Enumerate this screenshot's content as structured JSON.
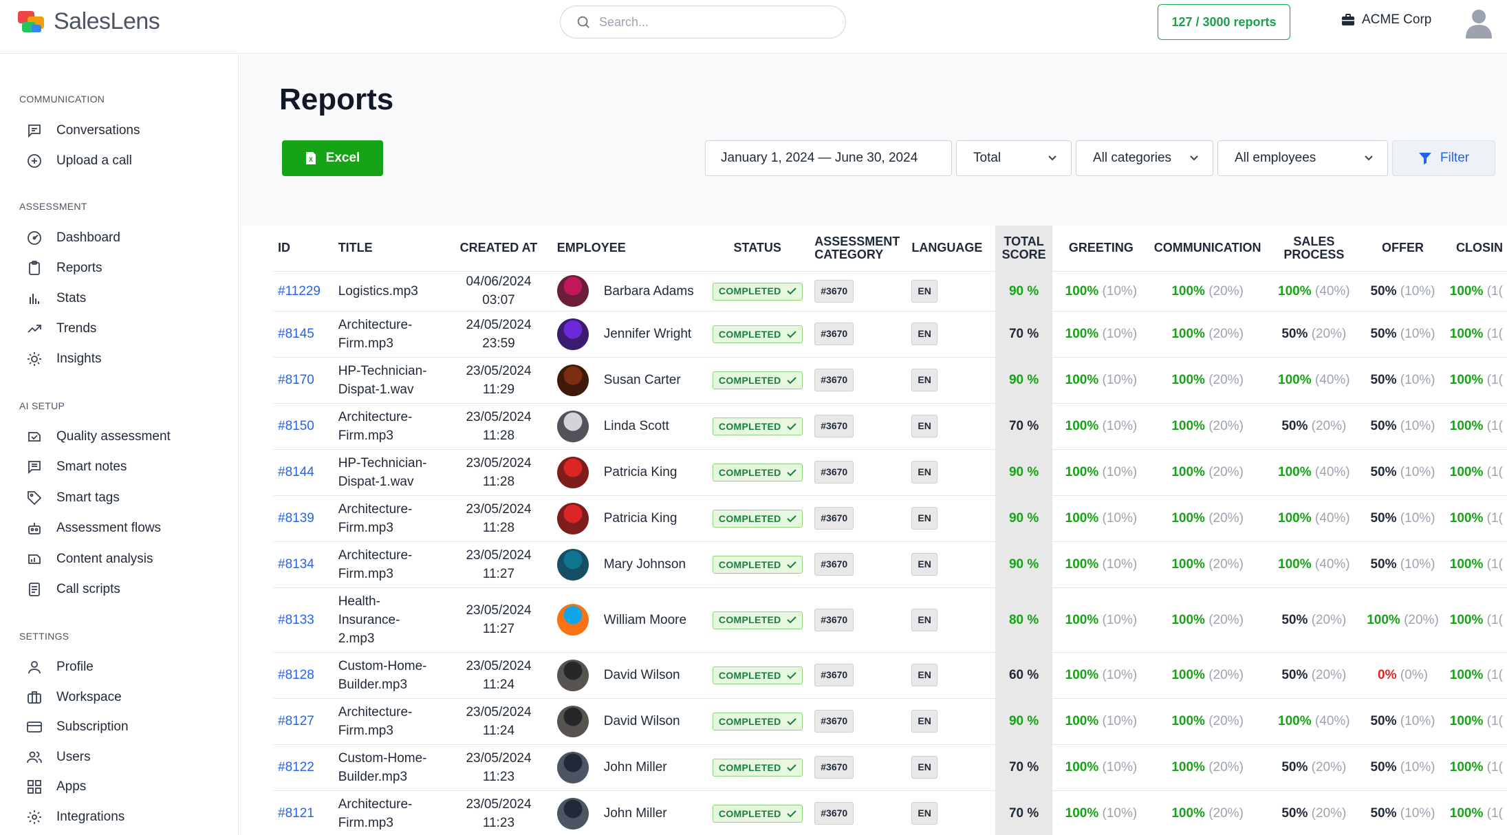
{
  "app": {
    "name": "SalesLens"
  },
  "header": {
    "search_placeholder": "Search...",
    "reports_count": "127 / 3000 reports",
    "workspace": "ACME Corp"
  },
  "sidebar": {
    "sections": [
      {
        "title": "COMMUNICATION",
        "items": [
          {
            "label": "Conversations",
            "icon": "chat-icon"
          },
          {
            "label": "Upload a call",
            "icon": "upload-icon"
          }
        ]
      },
      {
        "title": "ASSESSMENT",
        "items": [
          {
            "label": "Dashboard",
            "icon": "dashboard-icon"
          },
          {
            "label": "Reports",
            "icon": "clipboard-icon"
          },
          {
            "label": "Stats",
            "icon": "bar-chart-icon"
          },
          {
            "label": "Trends",
            "icon": "trend-icon"
          },
          {
            "label": "Insights",
            "icon": "sun-icon"
          }
        ]
      },
      {
        "title": "AI SETUP",
        "items": [
          {
            "label": "Quality assessment",
            "icon": "quality-icon"
          },
          {
            "label": "Smart notes",
            "icon": "notes-icon"
          },
          {
            "label": "Smart tags",
            "icon": "tag-icon"
          },
          {
            "label": "Assessment flows",
            "icon": "flow-icon"
          },
          {
            "label": "Content analysis",
            "icon": "analysis-icon"
          },
          {
            "label": "Call scripts",
            "icon": "script-icon"
          }
        ]
      },
      {
        "title": "SETTINGS",
        "items": [
          {
            "label": "Profile",
            "icon": "user-icon"
          },
          {
            "label": "Workspace",
            "icon": "briefcase-icon"
          },
          {
            "label": "Subscription",
            "icon": "card-icon"
          },
          {
            "label": "Users",
            "icon": "users-icon"
          },
          {
            "label": "Apps",
            "icon": "apps-icon"
          },
          {
            "label": "Integrations",
            "icon": "gear-icon"
          }
        ]
      }
    ]
  },
  "page": {
    "title": "Reports",
    "excel_label": "Excel",
    "date_range": "January 1, 2024 — June 30, 2024",
    "total_select": "Total",
    "categories_select": "All categories",
    "employees_select": "All employees",
    "filter_label": "Filter"
  },
  "table": {
    "columns": [
      "ID",
      "TITLE",
      "CREATED AT",
      "EMPLOYEE",
      "STATUS",
      "ASSESSMENT CATEGORY",
      "LANGUAGE",
      "TOTAL SCORE",
      "GREETING",
      "COMMUNICATION",
      "SALES PROCESS",
      "OFFER",
      "CLOSIN"
    ],
    "rows": [
      {
        "id": "#11229",
        "title": [
          "Logistics.mp3"
        ],
        "created": "04/06/2024 03:07",
        "employee": "Barbara Adams",
        "status": "COMPLETED",
        "category": "#3670",
        "lang": "EN",
        "total": "90 %",
        "greeting": [
          "100%",
          "(10%)"
        ],
        "communication": [
          "100%",
          "(20%)"
        ],
        "sales": [
          "100%",
          "(40%)"
        ],
        "offer": [
          "50%",
          "(10%)"
        ],
        "closing": [
          "100%",
          "(1("
        ]
      },
      {
        "id": "#8145",
        "title": [
          "Architecture-",
          "Firm.mp3"
        ],
        "created": "24/05/2024 23:59",
        "employee": "Jennifer Wright",
        "status": "COMPLETED",
        "category": "#3670",
        "lang": "EN",
        "total": "70 %",
        "greeting": [
          "100%",
          "(10%)"
        ],
        "communication": [
          "100%",
          "(20%)"
        ],
        "sales": [
          "50%",
          "(20%)"
        ],
        "offer": [
          "50%",
          "(10%)"
        ],
        "closing": [
          "100%",
          "(1("
        ]
      },
      {
        "id": "#8170",
        "title": [
          "HP-Technician-",
          "Dispat-1.wav"
        ],
        "created": "23/05/2024 11:29",
        "employee": "Susan Carter",
        "status": "COMPLETED",
        "category": "#3670",
        "lang": "EN",
        "total": "90 %",
        "greeting": [
          "100%",
          "(10%)"
        ],
        "communication": [
          "100%",
          "(20%)"
        ],
        "sales": [
          "100%",
          "(40%)"
        ],
        "offer": [
          "50%",
          "(10%)"
        ],
        "closing": [
          "100%",
          "(1("
        ]
      },
      {
        "id": "#8150",
        "title": [
          "Architecture-",
          "Firm.mp3"
        ],
        "created": "23/05/2024 11:28",
        "employee": "Linda Scott",
        "status": "COMPLETED",
        "category": "#3670",
        "lang": "EN",
        "total": "70 %",
        "greeting": [
          "100%",
          "(10%)"
        ],
        "communication": [
          "100%",
          "(20%)"
        ],
        "sales": [
          "50%",
          "(20%)"
        ],
        "offer": [
          "50%",
          "(10%)"
        ],
        "closing": [
          "100%",
          "(1("
        ]
      },
      {
        "id": "#8144",
        "title": [
          "HP-Technician-",
          "Dispat-1.wav"
        ],
        "created": "23/05/2024 11:28",
        "employee": "Patricia King",
        "status": "COMPLETED",
        "category": "#3670",
        "lang": "EN",
        "total": "90 %",
        "greeting": [
          "100%",
          "(10%)"
        ],
        "communication": [
          "100%",
          "(20%)"
        ],
        "sales": [
          "100%",
          "(40%)"
        ],
        "offer": [
          "50%",
          "(10%)"
        ],
        "closing": [
          "100%",
          "(1("
        ]
      },
      {
        "id": "#8139",
        "title": [
          "Architecture-",
          "Firm.mp3"
        ],
        "created": "23/05/2024 11:28",
        "employee": "Patricia King",
        "status": "COMPLETED",
        "category": "#3670",
        "lang": "EN",
        "total": "90 %",
        "greeting": [
          "100%",
          "(10%)"
        ],
        "communication": [
          "100%",
          "(20%)"
        ],
        "sales": [
          "100%",
          "(40%)"
        ],
        "offer": [
          "50%",
          "(10%)"
        ],
        "closing": [
          "100%",
          "(1("
        ]
      },
      {
        "id": "#8134",
        "title": [
          "Architecture-",
          "Firm.mp3"
        ],
        "created": "23/05/2024 11:27",
        "employee": "Mary Johnson",
        "status": "COMPLETED",
        "category": "#3670",
        "lang": "EN",
        "total": "90 %",
        "greeting": [
          "100%",
          "(10%)"
        ],
        "communication": [
          "100%",
          "(20%)"
        ],
        "sales": [
          "100%",
          "(40%)"
        ],
        "offer": [
          "50%",
          "(10%)"
        ],
        "closing": [
          "100%",
          "(1("
        ]
      },
      {
        "id": "#8133",
        "title": [
          "Health-",
          "Insurance-",
          "2.mp3"
        ],
        "created": "23/05/2024 11:27",
        "employee": "William Moore",
        "status": "COMPLETED",
        "category": "#3670",
        "lang": "EN",
        "total": "80 %",
        "greeting": [
          "100%",
          "(10%)"
        ],
        "communication": [
          "100%",
          "(20%)"
        ],
        "sales": [
          "50%",
          "(20%)"
        ],
        "offer": [
          "100%",
          "(20%)"
        ],
        "closing": [
          "100%",
          "(1("
        ]
      },
      {
        "id": "#8128",
        "title": [
          "Custom-Home-",
          "Builder.mp3"
        ],
        "created": "23/05/2024 11:24",
        "employee": "David Wilson",
        "status": "COMPLETED",
        "category": "#3670",
        "lang": "EN",
        "total": "60 %",
        "greeting": [
          "100%",
          "(10%)"
        ],
        "communication": [
          "100%",
          "(20%)"
        ],
        "sales": [
          "50%",
          "(20%)"
        ],
        "offer": [
          "0%",
          "(0%)"
        ],
        "closing": [
          "100%",
          "(1("
        ]
      },
      {
        "id": "#8127",
        "title": [
          "Architecture-",
          "Firm.mp3"
        ],
        "created": "23/05/2024 11:24",
        "employee": "David Wilson",
        "status": "COMPLETED",
        "category": "#3670",
        "lang": "EN",
        "total": "90 %",
        "greeting": [
          "100%",
          "(10%)"
        ],
        "communication": [
          "100%",
          "(20%)"
        ],
        "sales": [
          "100%",
          "(40%)"
        ],
        "offer": [
          "50%",
          "(10%)"
        ],
        "closing": [
          "100%",
          "(1("
        ]
      },
      {
        "id": "#8122",
        "title": [
          "Custom-Home-",
          "Builder.mp3"
        ],
        "created": "23/05/2024 11:23",
        "employee": "John Miller",
        "status": "COMPLETED",
        "category": "#3670",
        "lang": "EN",
        "total": "70 %",
        "greeting": [
          "100%",
          "(10%)"
        ],
        "communication": [
          "100%",
          "(20%)"
        ],
        "sales": [
          "50%",
          "(20%)"
        ],
        "offer": [
          "50%",
          "(10%)"
        ],
        "closing": [
          "100%",
          "(1("
        ]
      },
      {
        "id": "#8121",
        "title": [
          "Architecture-",
          "Firm.mp3"
        ],
        "created": "23/05/2024 11:23",
        "employee": "John Miller",
        "status": "COMPLETED",
        "category": "#3670",
        "lang": "EN",
        "total": "70 %",
        "greeting": [
          "100%",
          "(10%)"
        ],
        "communication": [
          "100%",
          "(20%)"
        ],
        "sales": [
          "50%",
          "(20%)"
        ],
        "offer": [
          "50%",
          "(10%)"
        ],
        "closing": [
          "100%",
          "(1("
        ]
      }
    ]
  },
  "colors": {
    "brand_green": "#16a316",
    "link_blue": "#2563eb",
    "danger_red": "#dc2626"
  }
}
